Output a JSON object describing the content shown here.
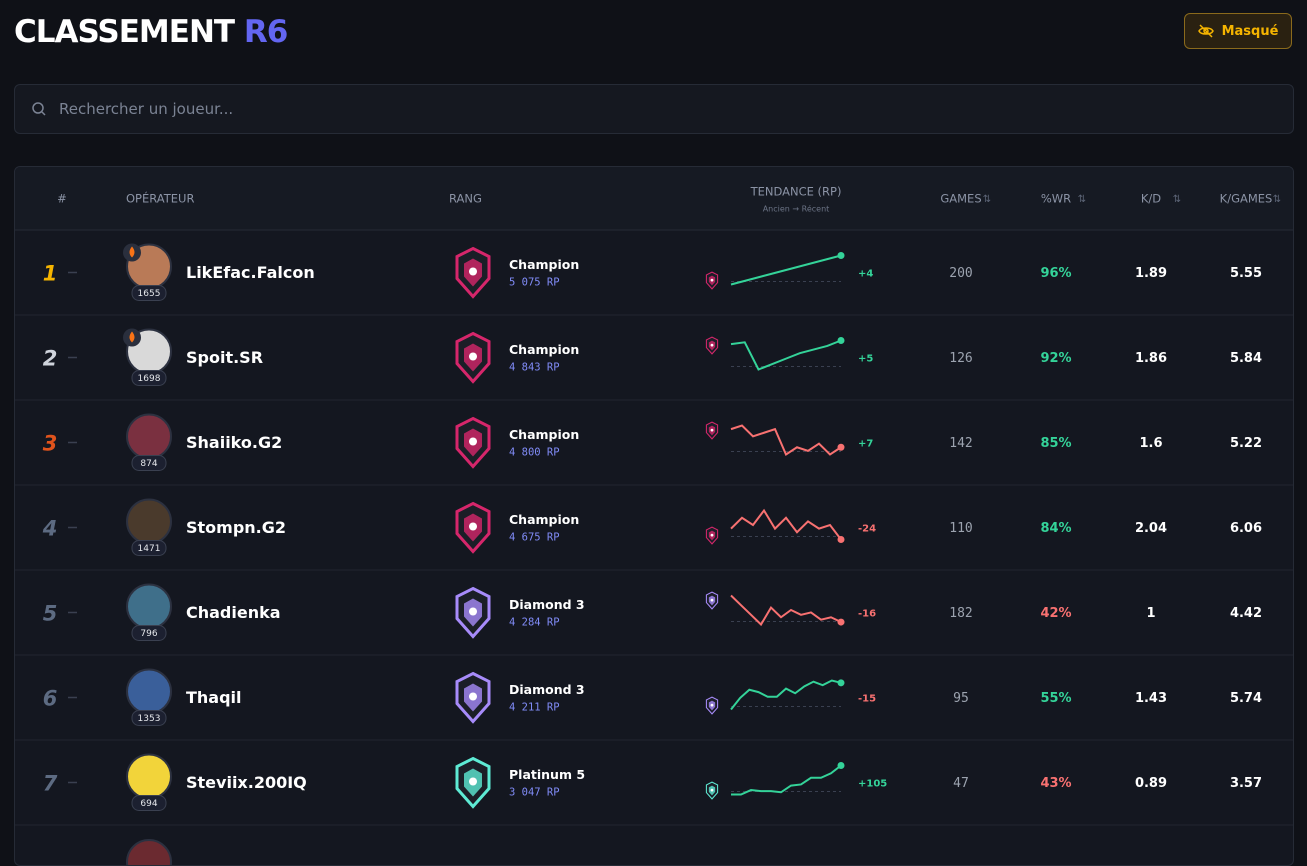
{
  "header": {
    "title": "CLASSEMENT",
    "title_accent": "R6",
    "button": "Masqué"
  },
  "search": {
    "placeholder": "Rechercher un joueur..."
  },
  "table": {
    "columns": [
      "#",
      "OPÉRATEUR",
      "RANG",
      "TENDANCE (RP)",
      "GAMES",
      "%WR",
      "K/D",
      "K/GAMES"
    ],
    "sort_icon": "⇅",
    "trend_subtitle": "Ancien → Récent",
    "rows": [
      {
        "rank": "1",
        "rank_color": "#f5b400",
        "hot": true,
        "name": "LikEfac.Falcon",
        "level": "1655",
        "tier": "Champion",
        "tier_color": "#d6266b",
        "rp": "5 075 RP",
        "delta": "+4",
        "delta_color": "#34d399",
        "trend_color": "#34d399",
        "trend": [
          70,
          72,
          74,
          76,
          78,
          80,
          82,
          84,
          86
        ],
        "games": "200",
        "wr": "96%",
        "wr_color": "#34d399",
        "kd": "1.89",
        "kg": "5.55"
      },
      {
        "rank": "2",
        "rank_color": "#d0d4dc",
        "hot": true,
        "name": "Spoit.SR",
        "level": "1698",
        "tier": "Champion",
        "tier_color": "#d6266b",
        "rp": "4 843 RP",
        "delta": "+5",
        "delta_color": "#34d399",
        "trend_color": "#34d399",
        "trend": [
          78,
          80,
          50,
          56,
          62,
          68,
          72,
          76,
          82
        ],
        "games": "126",
        "wr": "92%",
        "wr_color": "#34d399",
        "kd": "1.86",
        "kg": "5.84"
      },
      {
        "rank": "3",
        "rank_color": "#e0531c",
        "hot": false,
        "name": "Shaiiko.G2",
        "level": "874",
        "tier": "Champion",
        "tier_color": "#d6266b",
        "rp": "4 800 RP",
        "delta": "+7",
        "delta_color": "#34d399",
        "trend_color": "#f87171",
        "trend": [
          80,
          82,
          76,
          78,
          80,
          66,
          70,
          68,
          72,
          66,
          70
        ],
        "games": "142",
        "wr": "85%",
        "wr_color": "#34d399",
        "kd": "1.6",
        "kg": "5.22"
      },
      {
        "rank": "4",
        "rank_color": "#5d6b82",
        "hot": false,
        "name": "Stompn.G2",
        "level": "1471",
        "tier": "Champion",
        "tier_color": "#d6266b",
        "rp": "4 675 RP",
        "delta": "-24",
        "delta_color": "#f87171",
        "trend_color": "#f87171",
        "trend": [
          70,
          76,
          72,
          80,
          70,
          76,
          68,
          74,
          70,
          72,
          64
        ],
        "games": "110",
        "wr": "84%",
        "wr_color": "#34d399",
        "kd": "2.04",
        "kg": "6.06"
      },
      {
        "rank": "5",
        "rank_color": "#5d6b82",
        "hot": false,
        "name": "Chadienka",
        "level": "796",
        "tier": "Diamond 3",
        "tier_color": "#a78bfa",
        "rp": "4 284 RP",
        "delta": "-16",
        "delta_color": "#f87171",
        "trend_color": "#f87171",
        "trend": [
          90,
          82,
          74,
          66,
          80,
          72,
          78,
          74,
          76,
          70,
          72,
          68
        ],
        "games": "182",
        "wr": "42%",
        "wr_color": "#f87171",
        "kd": "1",
        "kg": "4.42"
      },
      {
        "rank": "6",
        "rank_color": "#5d6b82",
        "hot": false,
        "name": "Thaqil",
        "level": "1353",
        "tier": "Diamond 3",
        "tier_color": "#a78bfa",
        "rp": "4 211 RP",
        "delta": "-15",
        "delta_color": "#f87171",
        "trend_color": "#34d399",
        "trend": [
          40,
          60,
          74,
          70,
          62,
          62,
          76,
          68,
          80,
          88,
          82,
          90,
          86
        ],
        "games": "95",
        "wr": "55%",
        "wr_color": "#34d399",
        "kd": "1.43",
        "kg": "5.74"
      },
      {
        "rank": "7",
        "rank_color": "#5d6b82",
        "hot": false,
        "name": "Steviix.200IQ",
        "level": "694",
        "tier": "Platinum 5",
        "tier_color": "#5eead4",
        "rp": "3 047 RP",
        "delta": "+105",
        "delta_color": "#34d399",
        "trend_color": "#34d399",
        "trend": [
          40,
          40,
          48,
          46,
          46,
          44,
          56,
          58,
          70,
          70,
          78,
          92
        ],
        "games": "47",
        "wr": "43%",
        "wr_color": "#f87171",
        "kd": "0.89",
        "kg": "3.57"
      }
    ]
  }
}
